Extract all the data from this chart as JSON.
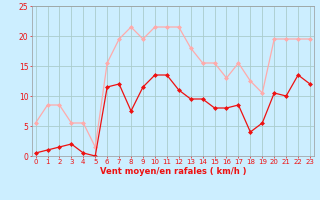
{
  "hours": [
    0,
    1,
    2,
    3,
    4,
    5,
    6,
    7,
    8,
    9,
    10,
    11,
    12,
    13,
    14,
    15,
    16,
    17,
    18,
    19,
    20,
    21,
    22,
    23
  ],
  "avg_wind": [
    0.5,
    1.0,
    1.5,
    2.0,
    0.5,
    0.0,
    11.5,
    12.0,
    7.5,
    11.5,
    13.5,
    13.5,
    11.0,
    9.5,
    9.5,
    8.0,
    8.0,
    8.5,
    4.0,
    5.5,
    10.5,
    10.0,
    13.5,
    12.0
  ],
  "gust_wind": [
    5.5,
    8.5,
    8.5,
    5.5,
    5.5,
    1.5,
    15.5,
    19.5,
    21.5,
    19.5,
    21.5,
    21.5,
    21.5,
    18.0,
    15.5,
    15.5,
    13.0,
    15.5,
    12.5,
    10.5,
    19.5,
    19.5,
    19.5,
    19.5
  ],
  "avg_color": "#ee1111",
  "gust_color": "#ffaaaa",
  "bg_color": "#cceeff",
  "grid_color": "#aacccc",
  "xlabel": "Vent moyen/en rafales ( km/h )",
  "xlabel_color": "#ee1111",
  "ylim": [
    0,
    25
  ],
  "yticks": [
    0,
    5,
    10,
    15,
    20,
    25
  ],
  "xlim": [
    0,
    23
  ],
  "marker": "D",
  "markersize": 2.0,
  "linewidth": 0.9
}
